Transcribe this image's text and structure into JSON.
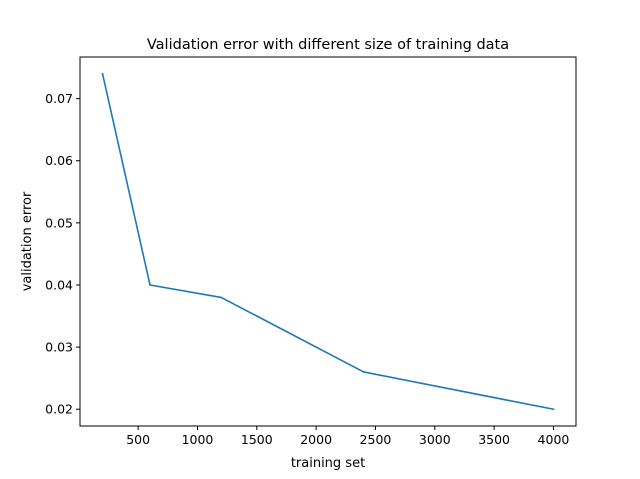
{
  "chart_data": {
    "type": "line",
    "title": "Validation error with different size of training data",
    "xlabel": "training set",
    "ylabel": "validation error",
    "xlim": [
      10,
      4190
    ],
    "ylim": [
      0.0173,
      0.0767
    ],
    "xticks": [
      500,
      1000,
      1500,
      2000,
      2500,
      3000,
      3500,
      4000
    ],
    "yticks": [
      0.02,
      0.03,
      0.04,
      0.05,
      0.06,
      0.07
    ],
    "xtick_labels": [
      "500",
      "1000",
      "1500",
      "2000",
      "2500",
      "3000",
      "3500",
      "4000"
    ],
    "ytick_labels": [
      "0.02",
      "0.03",
      "0.04",
      "0.05",
      "0.06",
      "0.07"
    ],
    "grid": false,
    "series": [
      {
        "x": [
          200,
          600,
          1200,
          2400,
          4000
        ],
        "y": [
          0.074,
          0.04,
          0.038,
          0.026,
          0.02
        ],
        "color": "#1f77b4"
      }
    ]
  }
}
